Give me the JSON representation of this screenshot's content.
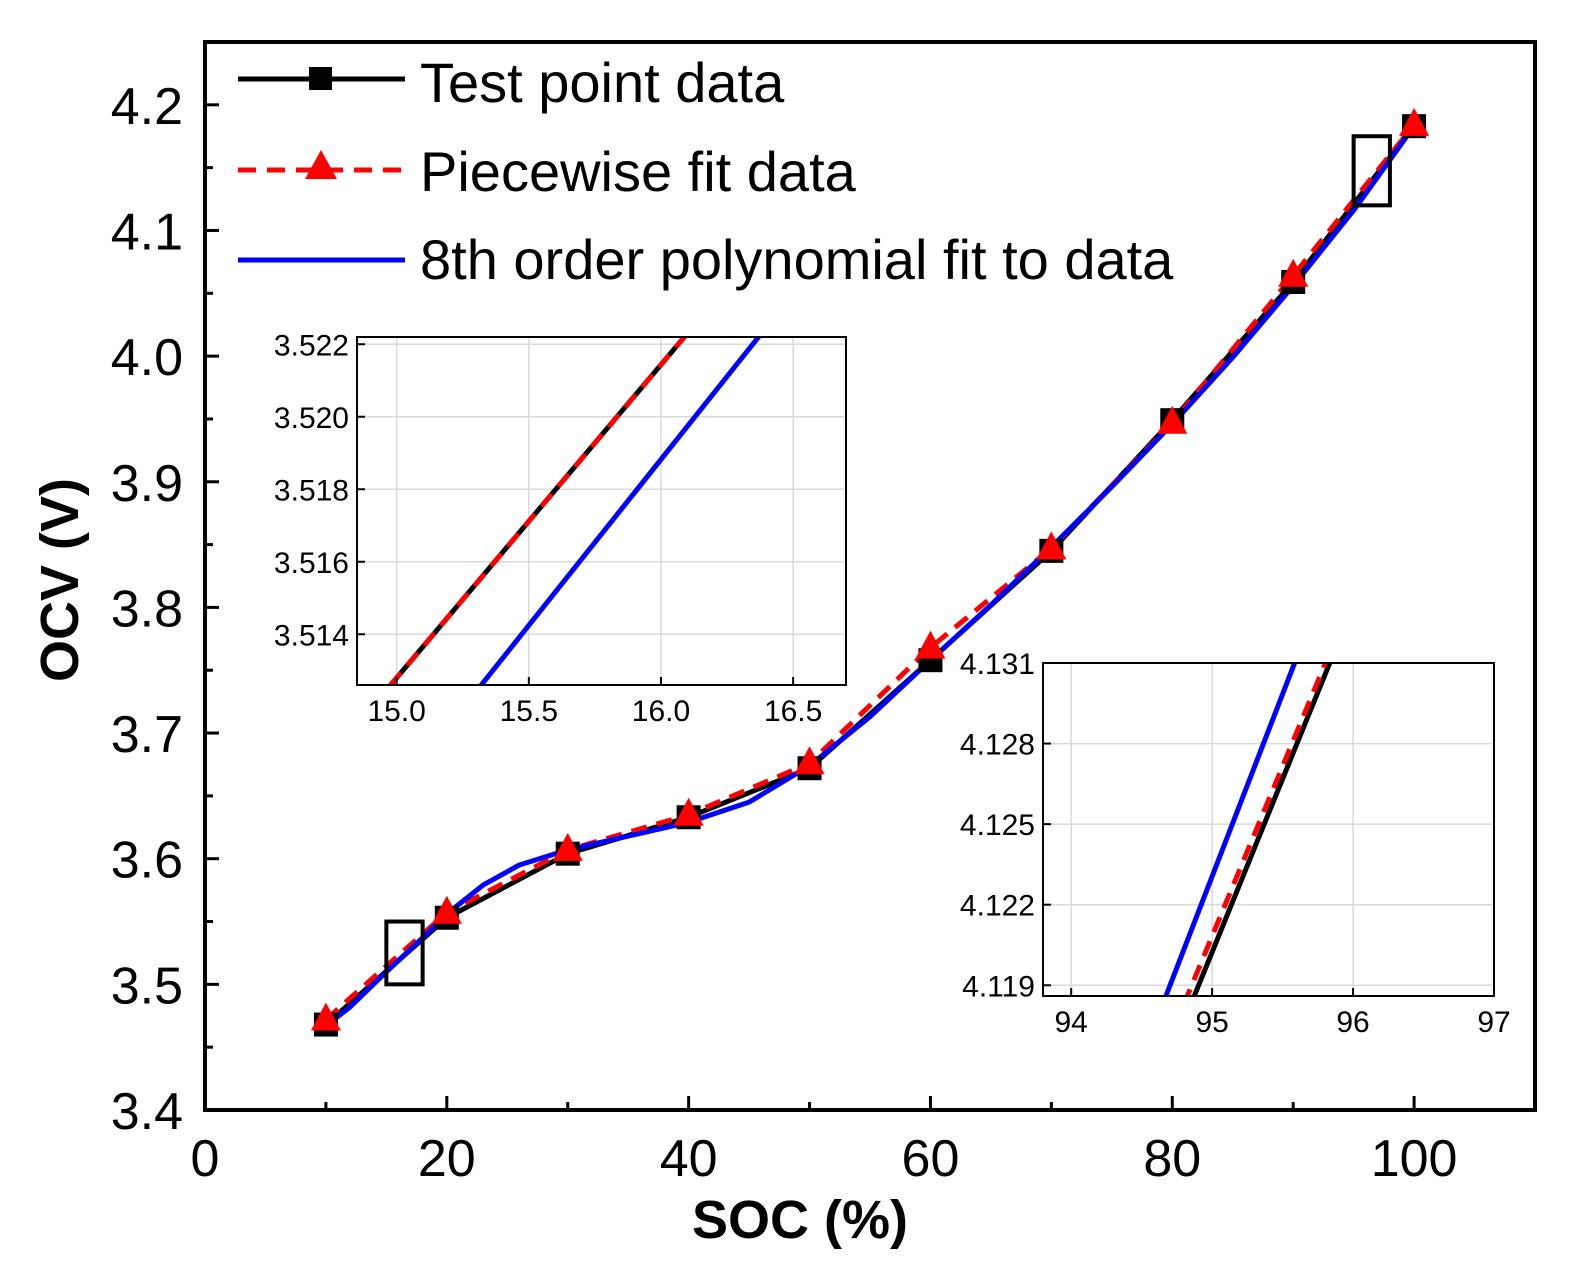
{
  "chart_data": [
    {
      "id": "main",
      "type": "line",
      "xlabel": "SOC (%)",
      "ylabel": "OCV (V)",
      "xlim": [
        0,
        110
      ],
      "ylim": [
        3.4,
        4.25
      ],
      "xticks": [
        0,
        20,
        40,
        60,
        80,
        100
      ],
      "xtick_labels": [
        "0",
        "20",
        "40",
        "60",
        "80",
        "100"
      ],
      "yticks": [
        3.4,
        3.5,
        3.6,
        3.7,
        3.8,
        3.9,
        4.0,
        4.1,
        4.2
      ],
      "ytick_labels": [
        "3.4",
        "3.5",
        "3.6",
        "3.7",
        "3.8",
        "3.9",
        "4.0",
        "4.1",
        "4.2"
      ],
      "legend_position": "top-left",
      "series": [
        {
          "name": "Test point data",
          "color": "#000000",
          "marker": "square",
          "style": "solid",
          "x": [
            10,
            20,
            30,
            40,
            50,
            60,
            70,
            80,
            90,
            100
          ],
          "y": [
            3.468,
            3.553,
            3.604,
            3.633,
            3.672,
            3.758,
            3.845,
            3.949,
            4.059,
            4.183
          ]
        },
        {
          "name": "Piecewise fit data",
          "color": "#ff0000",
          "marker": "triangle",
          "style": "dashed",
          "x": [
            10,
            20,
            30,
            40,
            50,
            60,
            70,
            80,
            90,
            100
          ],
          "y": [
            3.472,
            3.557,
            3.607,
            3.635,
            3.676,
            3.768,
            3.847,
            3.947,
            4.064,
            4.184
          ]
        },
        {
          "name": "8th order polynomial fit to data",
          "color": "#0000ff",
          "marker": "none",
          "style": "solid",
          "x": [
            10,
            12,
            15,
            18,
            20,
            23,
            26,
            30,
            35,
            40,
            45,
            50,
            55,
            60,
            65,
            70,
            75,
            80,
            85,
            90,
            95,
            100
          ],
          "y": [
            3.467,
            3.482,
            3.51,
            3.537,
            3.556,
            3.579,
            3.595,
            3.607,
            3.618,
            3.629,
            3.645,
            3.674,
            3.713,
            3.758,
            3.802,
            3.848,
            3.896,
            3.946,
            3.999,
            4.056,
            4.116,
            4.183
          ]
        }
      ],
      "annotations": [
        {
          "type": "zoom-box",
          "x": [
            15,
            18
          ],
          "y": [
            3.5,
            3.55
          ]
        },
        {
          "type": "zoom-box",
          "x": [
            95,
            98
          ],
          "y": [
            4.12,
            4.175
          ]
        }
      ]
    },
    {
      "id": "inset-left",
      "type": "line",
      "xlim": [
        14.85,
        16.7
      ],
      "ylim": [
        3.5126,
        3.5222
      ],
      "xticks": [
        15.0,
        15.5,
        16.0,
        16.5
      ],
      "xtick_labels": [
        "15.0",
        "15.5",
        "16.0",
        "16.5"
      ],
      "yticks": [
        3.514,
        3.516,
        3.518,
        3.52,
        3.522
      ],
      "ytick_labels": [
        "3.514",
        "3.516",
        "3.518",
        "3.520",
        "3.522"
      ],
      "grid": true,
      "series": [
        {
          "name": "Test point data",
          "color": "#000000",
          "style": "solid",
          "x": [
            14.85,
            16.1
          ],
          "y": [
            3.5115,
            3.5223
          ]
        },
        {
          "name": "Piecewise fit data",
          "color": "#ff0000",
          "style": "dashed",
          "x": [
            14.85,
            16.1
          ],
          "y": [
            3.5115,
            3.5223
          ]
        },
        {
          "name": "8th order polynomial fit to data",
          "color": "#0000ff",
          "style": "solid",
          "x": [
            15.2,
            16.38
          ],
          "y": [
            3.5115,
            3.5223
          ]
        }
      ]
    },
    {
      "id": "inset-right",
      "type": "line",
      "xlim": [
        93.8,
        97
      ],
      "ylim": [
        4.1186,
        4.131
      ],
      "xticks": [
        94,
        95,
        96,
        97
      ],
      "xtick_labels": [
        "94",
        "95",
        "96",
        "97"
      ],
      "yticks": [
        4.119,
        4.122,
        4.125,
        4.128,
        4.131
      ],
      "ytick_labels": [
        "4.119",
        "4.122",
        "4.125",
        "4.128",
        "4.131"
      ],
      "grid": true,
      "series": [
        {
          "name": "Test point data",
          "color": "#000000",
          "style": "solid",
          "x": [
            94.85,
            95.85
          ],
          "y": [
            4.1183,
            4.1312
          ]
        },
        {
          "name": "Piecewise fit data",
          "color": "#ff0000",
          "style": "dashed",
          "x": [
            94.8,
            95.82
          ],
          "y": [
            4.1183,
            4.1312
          ]
        },
        {
          "name": "8th order polynomial fit to data",
          "color": "#0000ff",
          "style": "solid",
          "x": [
            94.65,
            95.6
          ],
          "y": [
            4.1183,
            4.1312
          ]
        }
      ]
    }
  ]
}
